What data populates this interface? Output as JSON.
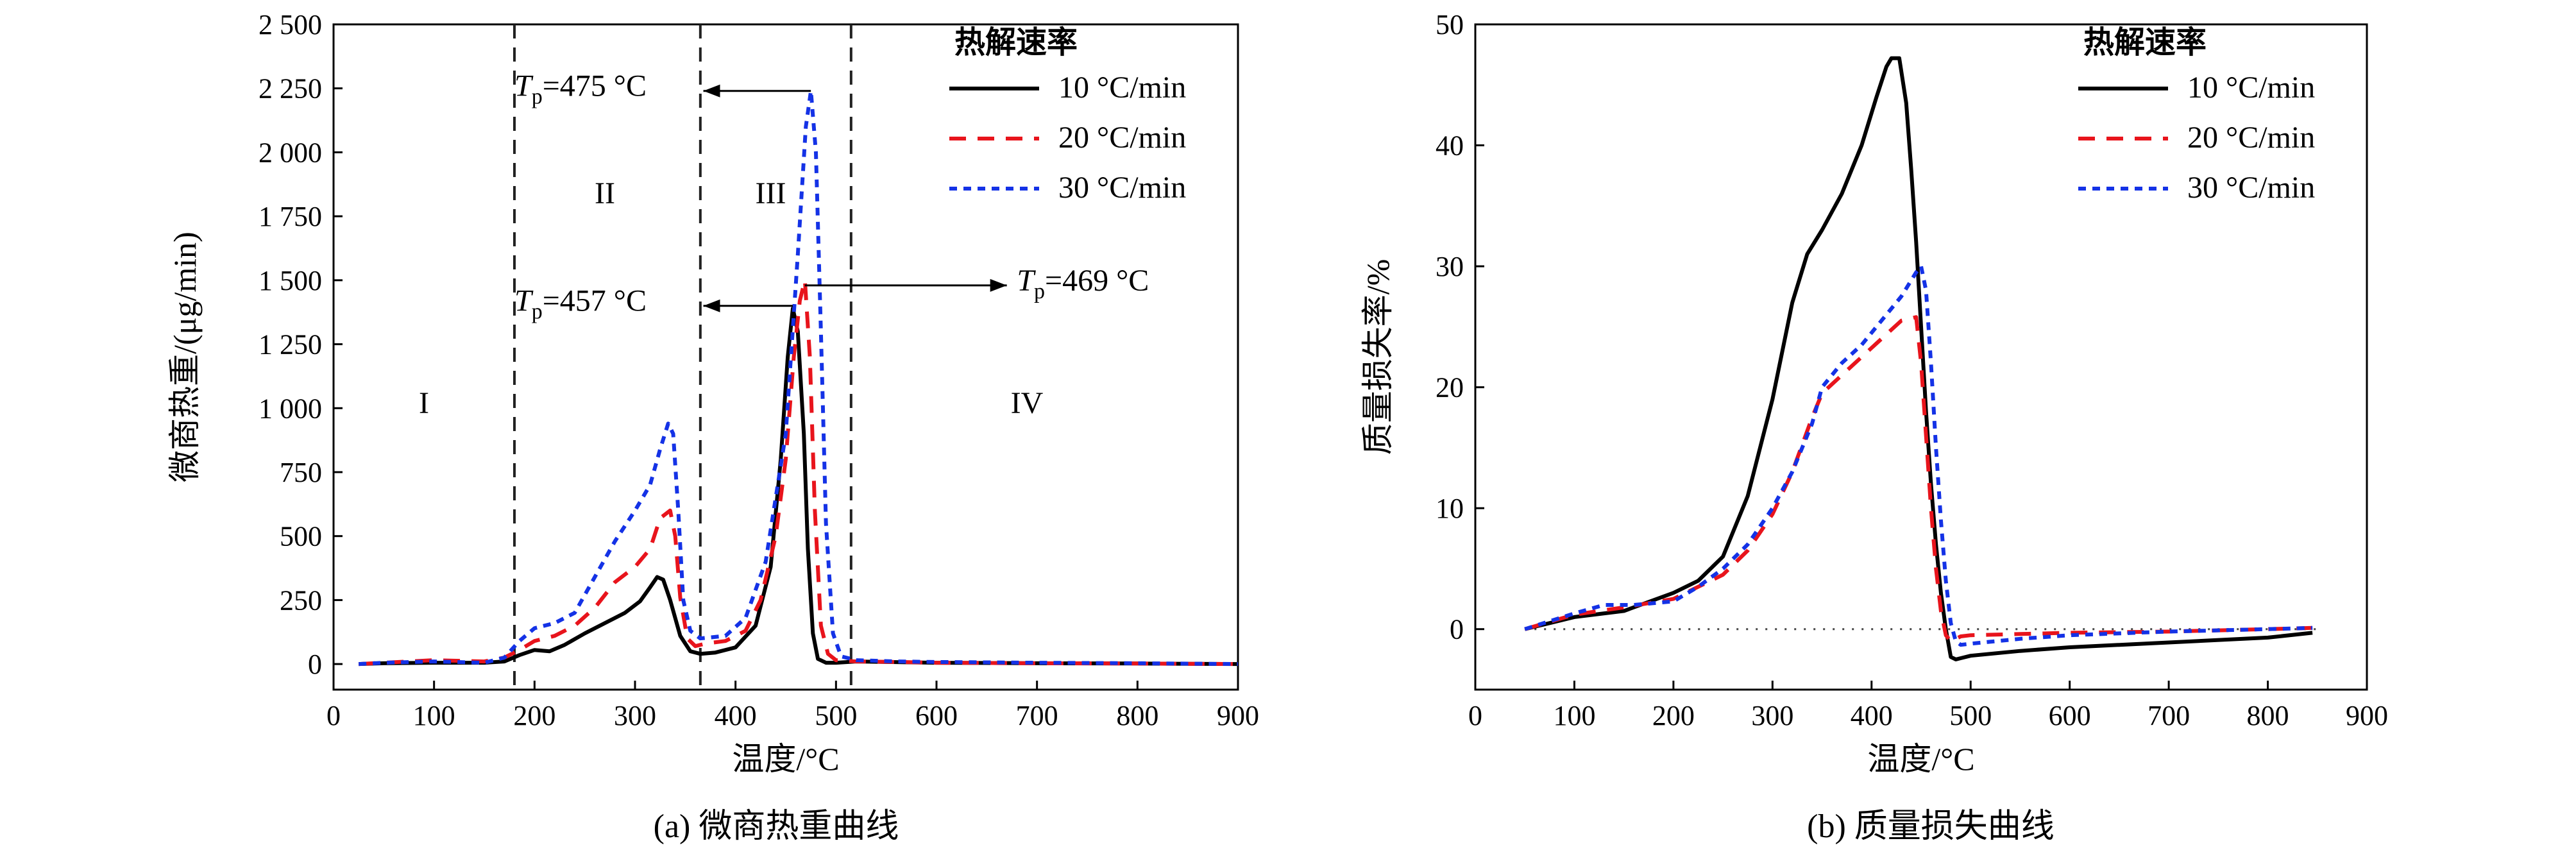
{
  "captions": {
    "a": "(a) 微商热重曲线",
    "b": "(b) 质量损失曲线"
  },
  "colors": {
    "s10": "#000000",
    "s20": "#e8141c",
    "s30": "#1432e6"
  },
  "chart_data": [
    {
      "type": "line",
      "xlabel": "温度/°C",
      "ylabel": "微商热重/(μg/min)",
      "xlim": [
        0,
        900
      ],
      "ylim": [
        -100,
        2500
      ],
      "xticks": [
        0,
        100,
        200,
        300,
        400,
        500,
        600,
        700,
        800,
        900
      ],
      "yticks": [
        0,
        250,
        500,
        750,
        1000,
        1250,
        1500,
        1750,
        2000,
        2250,
        2500
      ],
      "ytick_labels": [
        "0",
        "250",
        "500",
        "750",
        "1 000",
        "1 250",
        "1 500",
        "1 750",
        "2 000",
        "2 250",
        "2 500"
      ],
      "grid": false,
      "legend_title": "热解速率",
      "legend_position": "top-right",
      "vlines": [
        180,
        365,
        515
      ],
      "regions": [
        {
          "label": "I",
          "x": 90,
          "y": 980
        },
        {
          "label": "II",
          "x": 270,
          "y": 1800
        },
        {
          "label": "III",
          "x": 435,
          "y": 1800
        },
        {
          "label": "IV",
          "x": 690,
          "y": 980
        }
      ],
      "annotations": [
        {
          "T": "T",
          "sub": "p",
          "rest": "=475 °C",
          "text_x": 180,
          "text_y": 2220,
          "arrow_from": [
            475,
            2240
          ],
          "arrow_to": [
            368,
            2240
          ]
        },
        {
          "T": "T",
          "sub": "p",
          "rest": "=457 °C",
          "text_x": 180,
          "text_y": 1380,
          "arrow_from": [
            457,
            1400
          ],
          "arrow_to": [
            368,
            1400
          ]
        },
        {
          "T": "T",
          "sub": "p",
          "rest": "=469 °C",
          "text_x": 680,
          "text_y": 1460,
          "arrow_from": [
            469,
            1480
          ],
          "arrow_to": [
            670,
            1480
          ]
        }
      ],
      "series": [
        {
          "name": "10 °C/min",
          "key": "s10",
          "dash": "none",
          "x": [
            25,
            50,
            100,
            150,
            170,
            185,
            200,
            215,
            230,
            250,
            270,
            290,
            305,
            315,
            322,
            328,
            335,
            345,
            355,
            365,
            380,
            400,
            420,
            435,
            445,
            452,
            457,
            462,
            468,
            472,
            477,
            482,
            490,
            500,
            520,
            550,
            600,
            700,
            800,
            900
          ],
          "y": [
            0,
            3,
            5,
            5,
            10,
            35,
            55,
            50,
            75,
            120,
            160,
            200,
            245,
            300,
            340,
            330,
            250,
            110,
            50,
            40,
            45,
            65,
            150,
            380,
            800,
            1200,
            1390,
            1300,
            900,
            450,
            120,
            20,
            5,
            5,
            10,
            8,
            5,
            3,
            2,
            0
          ]
        },
        {
          "name": "20 °C/min",
          "key": "s20",
          "dash": "26 18",
          "x": [
            25,
            50,
            100,
            150,
            170,
            185,
            200,
            220,
            240,
            260,
            280,
            300,
            315,
            325,
            335,
            340,
            345,
            352,
            360,
            370,
            390,
            410,
            425,
            440,
            450,
            458,
            464,
            469,
            474,
            479,
            485,
            492,
            500,
            520,
            560,
            600,
            700,
            800,
            900
          ],
          "y": [
            0,
            5,
            15,
            10,
            25,
            55,
            90,
            110,
            150,
            220,
            320,
            380,
            450,
            570,
            600,
            500,
            260,
            100,
            70,
            80,
            90,
            130,
            250,
            500,
            800,
            1200,
            1420,
            1500,
            1200,
            600,
            150,
            40,
            15,
            10,
            8,
            5,
            3,
            2,
            0
          ]
        },
        {
          "name": "30 °C/min",
          "key": "s30",
          "dash": "12 10",
          "x": [
            25,
            50,
            100,
            150,
            170,
            185,
            200,
            220,
            240,
            260,
            280,
            300,
            315,
            325,
            333,
            338,
            343,
            348,
            355,
            365,
            390,
            410,
            430,
            450,
            462,
            470,
            475,
            480,
            485,
            490,
            497,
            505,
            520,
            560,
            600,
            700,
            800,
            900
          ],
          "y": [
            0,
            5,
            10,
            5,
            25,
            90,
            140,
            160,
            200,
            340,
            480,
            600,
            700,
            840,
            940,
            900,
            600,
            250,
            130,
            100,
            110,
            180,
            400,
            900,
            1600,
            2100,
            2240,
            2000,
            1300,
            550,
            120,
            30,
            15,
            10,
            8,
            5,
            3,
            0
          ]
        }
      ]
    },
    {
      "type": "line",
      "xlabel": "温度/°C",
      "ylabel": "质量损失率/%",
      "xlim": [
        0,
        900
      ],
      "ylim": [
        -5,
        50
      ],
      "xticks": [
        0,
        100,
        200,
        300,
        400,
        500,
        600,
        700,
        800,
        900
      ],
      "yticks": [
        0,
        10,
        20,
        30,
        40,
        50
      ],
      "ytick_labels": [
        "0",
        "10",
        "20",
        "30",
        "40",
        "50"
      ],
      "grid": false,
      "legend_title": "热解速率",
      "legend_position": "top-right",
      "zero_line": 0,
      "series": [
        {
          "name": "10 °C/min",
          "key": "s10",
          "dash": "none",
          "x": [
            50,
            100,
            150,
            200,
            225,
            250,
            275,
            300,
            320,
            335,
            350,
            370,
            390,
            405,
            415,
            420,
            428,
            435,
            440,
            445,
            450,
            455,
            460,
            465,
            470,
            475,
            480,
            485,
            490,
            500,
            550,
            600,
            700,
            800,
            845
          ],
          "y": [
            0,
            1,
            1.5,
            3,
            4,
            6,
            11,
            19,
            27,
            31,
            33,
            36,
            40,
            44,
            46.5,
            47.2,
            47.2,
            43.5,
            38,
            32,
            25,
            18,
            12,
            7,
            3,
            0,
            -2.3,
            -2.5,
            -2.4,
            -2.2,
            -1.8,
            -1.5,
            -1.1,
            -0.7,
            -0.3
          ]
        },
        {
          "name": "20 °C/min",
          "key": "s20",
          "dash": "26 18",
          "x": [
            50,
            100,
            150,
            200,
            225,
            250,
            275,
            300,
            320,
            340,
            350,
            370,
            390,
            410,
            430,
            445,
            450,
            455,
            460,
            465,
            470,
            475,
            480,
            485,
            490,
            500,
            550,
            600,
            700,
            800,
            845
          ],
          "y": [
            0,
            1.2,
            1.8,
            2.5,
            3.5,
            4.5,
            6.5,
            9.5,
            13,
            17.5,
            19.5,
            21,
            22.5,
            24,
            25.5,
            25.8,
            22,
            16,
            10,
            5,
            1.5,
            -0.5,
            -1,
            -0.8,
            -0.6,
            -0.5,
            -0.4,
            -0.3,
            -0.2,
            0,
            0.1
          ]
        },
        {
          "name": "30 °C/min",
          "key": "s30",
          "dash": "12 10",
          "x": [
            50,
            100,
            130,
            160,
            200,
            225,
            250,
            275,
            300,
            320,
            340,
            350,
            370,
            390,
            410,
            430,
            445,
            450,
            455,
            460,
            465,
            470,
            475,
            480,
            485,
            490,
            500,
            550,
            600,
            700,
            800,
            845
          ],
          "y": [
            0,
            1.3,
            2,
            2,
            2.3,
            3.5,
            5,
            7,
            10,
            13,
            17,
            20,
            22,
            23.5,
            25.5,
            27.5,
            29.5,
            30,
            28,
            22,
            15,
            9,
            4,
            0.5,
            -1,
            -1.3,
            -1.2,
            -0.8,
            -0.5,
            -0.2,
            0,
            0.1
          ]
        }
      ]
    }
  ]
}
